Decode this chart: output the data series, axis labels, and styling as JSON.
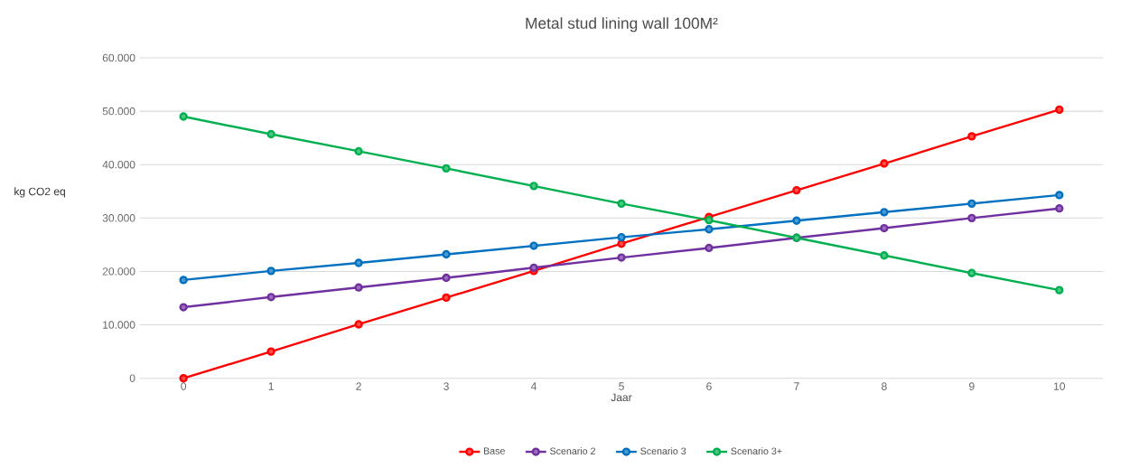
{
  "chart_data": {
    "type": "line",
    "title": "Metal stud lining wall 100M²",
    "xlabel": "Jaar",
    "ylabel": "kg CO2 eq",
    "categories": [
      "0",
      "1",
      "2",
      "3",
      "4",
      "5",
      "6",
      "7",
      "8",
      "9",
      "10"
    ],
    "series": [
      {
        "name": "Base",
        "color": "#ff0000",
        "values": [
          0,
          5000,
          10100,
          15100,
          20100,
          25200,
          30200,
          35200,
          40200,
          45300,
          50300
        ]
      },
      {
        "name": "Scenario 2",
        "color": "#7030a0",
        "values": [
          13300,
          15200,
          17000,
          18800,
          20700,
          22600,
          24400,
          26300,
          28100,
          30000,
          31800
        ]
      },
      {
        "name": "Scenario 3",
        "color": "#0070c0",
        "values": [
          18400,
          20100,
          21600,
          23200,
          24800,
          26400,
          27900,
          29500,
          31100,
          32700,
          34300
        ]
      },
      {
        "name": "Scenario 3+",
        "color": "#00b050",
        "values": [
          49000,
          45700,
          42500,
          39300,
          36000,
          32700,
          29600,
          26300,
          23000,
          19700,
          16500
        ]
      }
    ],
    "ylim": [
      0,
      60000
    ],
    "yticks": [
      {
        "value": 0,
        "label": "0"
      },
      {
        "value": 10000,
        "label": "10.000"
      },
      {
        "value": 20000,
        "label": "20.000"
      },
      {
        "value": 30000,
        "label": "30.000"
      },
      {
        "value": 40000,
        "label": "40.000"
      },
      {
        "value": 50000,
        "label": "50.000"
      },
      {
        "value": 60000,
        "label": "60.000"
      }
    ],
    "grid": "y",
    "legend": "bottom",
    "marker": "circle",
    "line_style": "solid"
  }
}
